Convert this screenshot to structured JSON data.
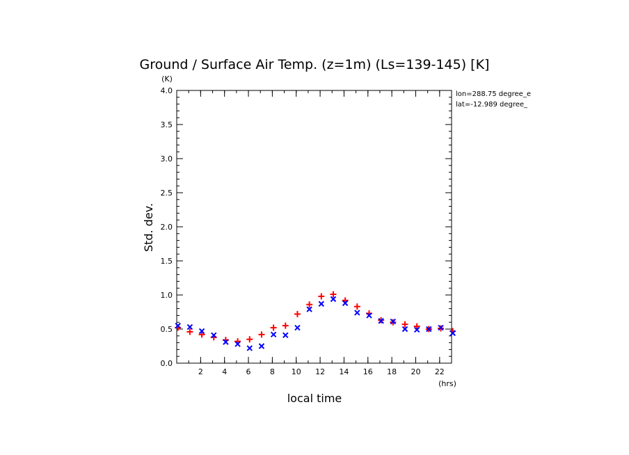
{
  "chart_data": {
    "type": "scatter",
    "title": "Ground / Surface Air Temp. (z=1m) (Ls=139-145) [K]",
    "xlabel": "local time",
    "xunit": "(hrs)",
    "ylabel": "Std. dev.",
    "yunit": "(K)",
    "xlim": [
      0,
      23
    ],
    "ylim": [
      0,
      4.0
    ],
    "xticks": [
      2,
      4,
      6,
      8,
      10,
      12,
      14,
      16,
      18,
      20,
      22
    ],
    "yticks": [
      0.0,
      0.5,
      1.0,
      1.5,
      2.0,
      2.5,
      3.0,
      3.5,
      4.0
    ],
    "annotations": [
      "lon=288.75 degree_e",
      "lat=-12.989 degree_"
    ],
    "x": [
      0.1,
      1.1,
      2.1,
      3.1,
      4.1,
      5.1,
      6.1,
      7.1,
      8.1,
      9.1,
      10.1,
      11.1,
      12.1,
      13.1,
      14.1,
      15.1,
      16.1,
      17.1,
      18.1,
      19.1,
      20.1,
      21.1,
      22.1,
      23.1
    ],
    "series": [
      {
        "marker": "+",
        "color": "#ff0000",
        "values": [
          0.52,
          0.46,
          0.42,
          0.38,
          0.34,
          0.32,
          0.35,
          0.42,
          0.52,
          0.55,
          0.72,
          0.86,
          0.98,
          1.01,
          0.92,
          0.83,
          0.73,
          0.63,
          0.6,
          0.57,
          0.54,
          0.5,
          0.51,
          0.47
        ]
      },
      {
        "marker": "x",
        "color": "#0000ff",
        "values": [
          0.55,
          0.53,
          0.47,
          0.41,
          0.31,
          0.28,
          0.22,
          0.25,
          0.42,
          0.41,
          0.52,
          0.79,
          0.87,
          0.94,
          0.88,
          0.74,
          0.7,
          0.62,
          0.61,
          0.5,
          0.49,
          0.5,
          0.52,
          0.44
        ]
      }
    ]
  }
}
